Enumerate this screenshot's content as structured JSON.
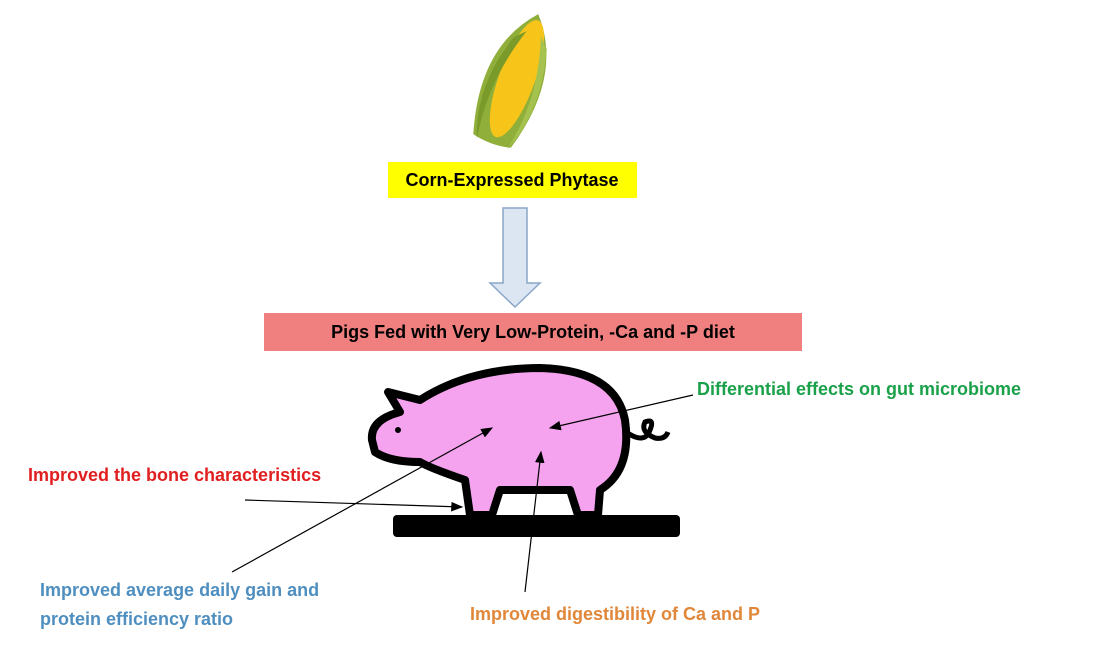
{
  "boxes": {
    "source": "Corn-Expressed Phytase",
    "diet": "Pigs Fed with Very Low-Protein, -Ca and -P diet"
  },
  "effects": {
    "microbiome": "Differential effects on gut microbiome",
    "bone": "Improved the bone characteristics",
    "gain": [
      "Improved average daily gain and",
      "protein efficiency ratio"
    ],
    "digestibility": "Improved digestibility of Ca and P"
  }
}
